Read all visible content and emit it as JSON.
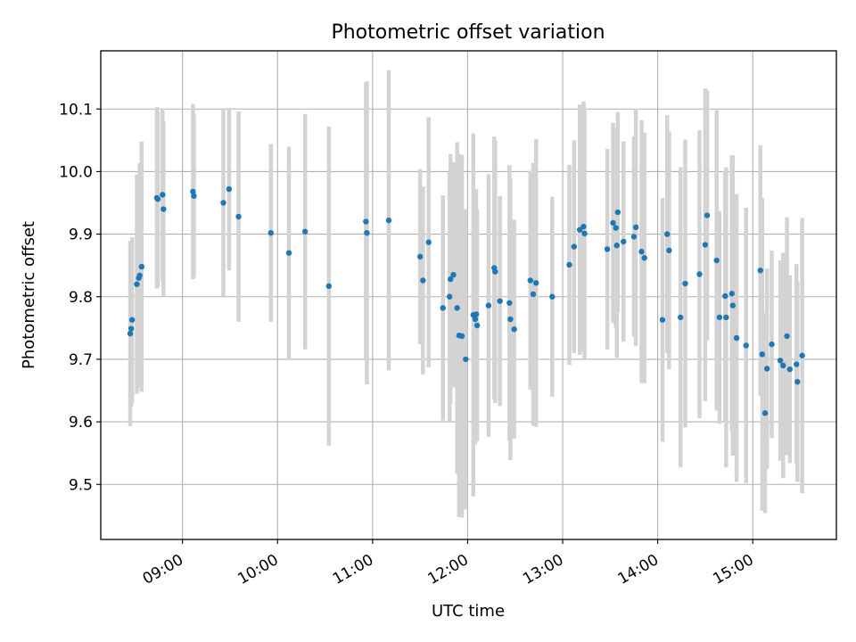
{
  "chart_data": {
    "type": "scatter",
    "title": "Photometric offset variation",
    "xlabel": "UTC time",
    "ylabel": "Photometric offset",
    "x_unit": "hours UTC",
    "xlim": [
      8.14,
      15.88
    ],
    "ylim": [
      9.412,
      10.193
    ],
    "x_ticks": [
      {
        "value": 9,
        "label": "09:00"
      },
      {
        "value": 10,
        "label": "10:00"
      },
      {
        "value": 11,
        "label": "11:00"
      },
      {
        "value": 12,
        "label": "12:00"
      },
      {
        "value": 13,
        "label": "13:00"
      },
      {
        "value": 14,
        "label": "14:00"
      },
      {
        "value": 15,
        "label": "15:00"
      }
    ],
    "y_ticks": [
      {
        "value": 9.5,
        "label": "9.5"
      },
      {
        "value": 9.6,
        "label": "9.6"
      },
      {
        "value": 9.7,
        "label": "9.7"
      },
      {
        "value": 9.8,
        "label": "9.8"
      },
      {
        "value": 9.9,
        "label": "9.9"
      },
      {
        "value": 10.0,
        "label": "10.0"
      },
      {
        "value": 10.1,
        "label": "10.1"
      }
    ],
    "grid": true,
    "marker_color": "#1f77b4",
    "errorbar_color": "#d3d3d3",
    "series": [
      {
        "x": [
          8.45,
          8.46,
          8.47,
          8.52,
          8.54,
          8.55,
          8.57,
          8.73,
          8.74,
          8.79,
          8.8,
          9.11,
          9.12,
          9.43,
          9.49,
          9.59,
          9.93,
          10.12,
          10.29,
          10.54,
          10.93,
          10.94,
          11.17,
          11.5,
          11.53,
          11.59,
          11.74,
          11.81,
          11.82,
          11.85,
          11.89,
          11.91,
          11.94,
          11.98,
          12.06,
          12.08,
          12.09,
          12.1,
          12.22,
          12.28,
          12.29,
          12.34,
          12.44,
          12.45,
          12.49,
          12.66,
          12.69,
          12.72,
          12.89,
          13.07,
          13.12,
          13.18,
          13.22,
          13.23,
          13.47,
          13.53,
          13.56,
          13.57,
          13.58,
          13.64,
          13.75,
          13.77,
          13.83,
          13.86,
          14.05,
          14.1,
          14.12,
          14.24,
          14.29,
          14.44,
          14.5,
          14.52,
          14.62,
          14.65,
          14.71,
          14.72,
          14.78,
          14.79,
          14.83,
          14.93,
          15.08,
          15.1,
          15.13,
          15.15,
          15.2,
          15.29,
          15.32,
          15.36,
          15.39,
          15.46,
          15.47,
          15.52
        ],
        "y": [
          9.741,
          9.749,
          9.763,
          9.82,
          9.83,
          9.834,
          9.848,
          9.958,
          9.956,
          9.963,
          9.94,
          9.968,
          9.961,
          9.95,
          9.972,
          9.928,
          9.902,
          9.87,
          9.904,
          9.817,
          9.92,
          9.902,
          9.922,
          9.864,
          9.826,
          9.887,
          9.782,
          9.8,
          9.828,
          9.835,
          9.782,
          9.738,
          9.737,
          9.7,
          9.771,
          9.764,
          9.772,
          9.754,
          9.786,
          9.846,
          9.84,
          9.793,
          9.79,
          9.764,
          9.748,
          9.826,
          9.804,
          9.822,
          9.8,
          9.851,
          9.88,
          9.907,
          9.912,
          9.901,
          9.876,
          9.918,
          9.91,
          9.882,
          9.935,
          9.888,
          9.896,
          9.911,
          9.872,
          9.862,
          9.763,
          9.9,
          9.874,
          9.767,
          9.821,
          9.836,
          9.883,
          9.93,
          9.858,
          9.767,
          9.801,
          9.767,
          9.805,
          9.786,
          9.734,
          9.722,
          9.842,
          9.708,
          9.614,
          9.685,
          9.724,
          9.698,
          9.69,
          9.737,
          9.684,
          9.692,
          9.664,
          9.706
        ],
        "yerr": [
          0.148,
          0.125,
          0.132,
          0.175,
          0.158,
          0.18,
          0.2,
          0.145,
          0.14,
          0.138,
          0.14,
          0.14,
          0.13,
          0.15,
          0.13,
          0.168,
          0.142,
          0.17,
          0.188,
          0.255,
          0.222,
          0.242,
          0.24,
          0.14,
          0.15,
          0.2,
          0.18,
          0.2,
          0.2,
          0.18,
          0.265,
          0.29,
          0.29,
          0.24,
          0.29,
          0.2,
          0.2,
          0.185,
          0.21,
          0.21,
          0.21,
          0.168,
          0.22,
          0.225,
          0.175,
          0.175,
          0.21,
          0.23,
          0.16,
          0.16,
          0.17,
          0.2,
          0.2,
          0.2,
          0.16,
          0.16,
          0.16,
          0.18,
          0.16,
          0.16,
          0.16,
          0.19,
          0.21,
          0.2,
          0.195,
          0.19,
          0.19,
          0.24,
          0.23,
          0.23,
          0.25,
          0.2,
          0.24,
          0.17,
          0.2,
          0.24,
          0.22,
          0.24,
          0.23,
          0.22,
          0.2,
          0.25,
          0.16,
          0.16,
          0.15,
          0.16,
          0.18,
          0.19,
          0.15,
          0.16,
          0.16,
          0.22
        ]
      }
    ]
  }
}
